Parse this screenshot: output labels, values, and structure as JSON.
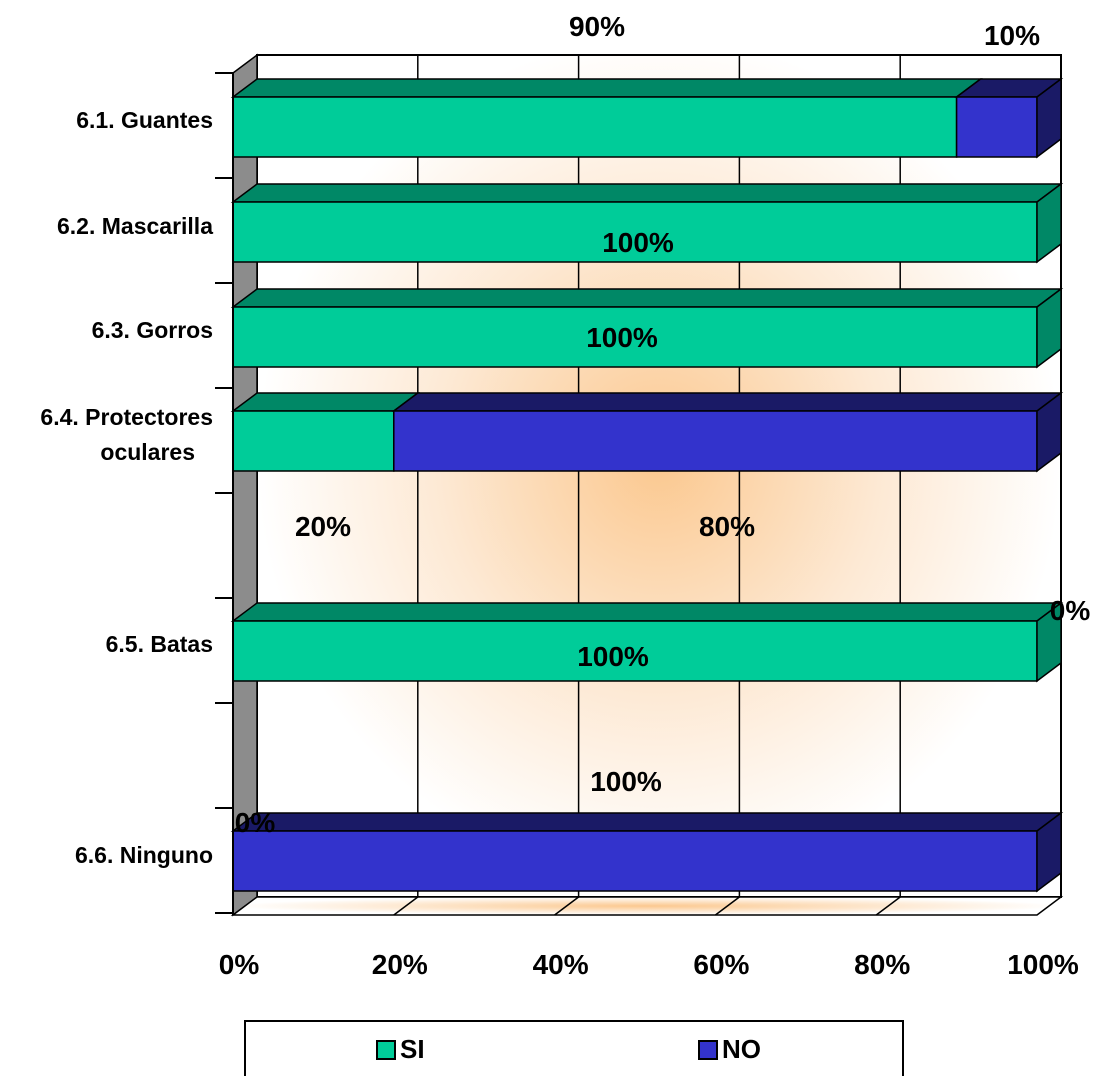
{
  "chart_data": {
    "type": "bar",
    "orientation": "horizontal",
    "stacked": "percent",
    "style": "3d",
    "categories": [
      "6.1. Guantes",
      "6.2. Mascarilla",
      "6.3. Gorros",
      "6.4. Protectores oculares",
      "6.5. Batas",
      "6.6.  Ninguno"
    ],
    "series": [
      {
        "name": "SI",
        "values": [
          90,
          100,
          100,
          20,
          100,
          0
        ],
        "color": "#00CC99",
        "top_color": "#008866"
      },
      {
        "name": "NO",
        "values": [
          10,
          0,
          0,
          80,
          0,
          100
        ],
        "color": "#3333CC",
        "top_color": "#1A1A66"
      }
    ],
    "data_labels": [
      {
        "text": "90%",
        "series": "SI",
        "category": "6.1. Guantes"
      },
      {
        "text": "10%",
        "series": "NO",
        "category": "6.1. Guantes"
      },
      {
        "text": "100%",
        "series": "SI",
        "category": "6.2. Mascarilla"
      },
      {
        "text": "100%",
        "series": "SI",
        "category": "6.3. Gorros"
      },
      {
        "text": "20%",
        "series": "SI",
        "category": "6.4. Protectores oculares"
      },
      {
        "text": "80%",
        "series": "NO",
        "category": "6.4. Protectores oculares"
      },
      {
        "text": "0%",
        "series": "NO",
        "category": "6.5. Batas"
      },
      {
        "text": "100%",
        "series": "SI",
        "category": "6.5. Batas"
      },
      {
        "text": "100%",
        "series": "NO",
        "category": "6.6.  Ninguno"
      },
      {
        "text": "0%",
        "series": "SI",
        "category": "6.6.  Ninguno"
      }
    ],
    "x_ticks": [
      "0%",
      "20%",
      "40%",
      "60%",
      "80%",
      "100%"
    ],
    "xlim": [
      0,
      100
    ],
    "grid": true,
    "legend": "bottom",
    "title": "",
    "xlabel": "",
    "ylabel": ""
  }
}
